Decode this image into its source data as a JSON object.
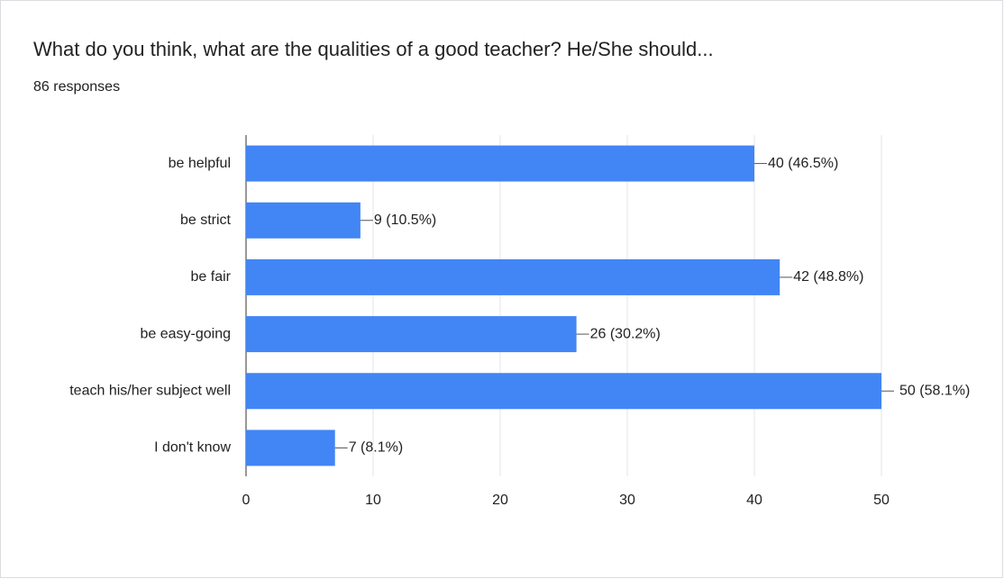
{
  "chart_data": {
    "type": "bar",
    "orientation": "horizontal",
    "title": "What do you think, what are the qualities of a good teacher? He/She should...",
    "subtitle": "86 responses",
    "categories": [
      "be helpful",
      "be strict",
      "be fair",
      "be easy-going",
      "teach his/her subject well",
      "I don't know"
    ],
    "values": [
      40,
      9,
      42,
      26,
      50,
      7
    ],
    "value_labels": [
      "40 (46.5%)",
      "9 (10.5%)",
      "42 (48.8%)",
      "26 (30.2%)",
      "50 (58.1%)",
      "7 (8.1%)"
    ],
    "color": "#4285f4",
    "xlim": [
      0,
      50
    ],
    "xticks": [
      0,
      10,
      20,
      30,
      40,
      50
    ],
    "grid": true
  }
}
